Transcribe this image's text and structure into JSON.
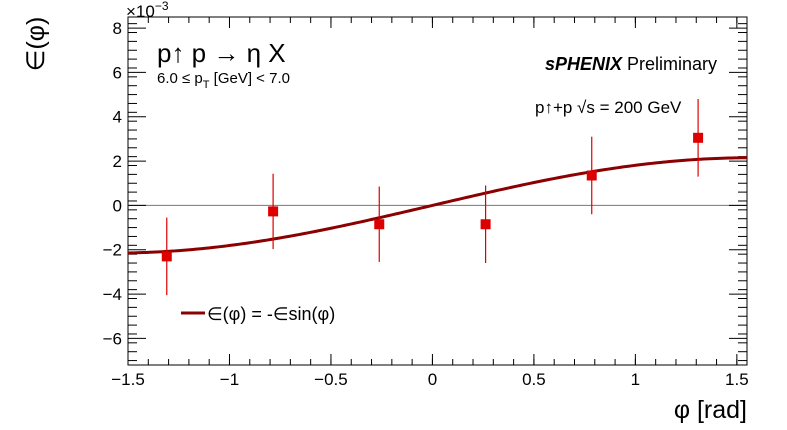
{
  "chart_data": {
    "type": "scatter",
    "ylabel": "∈(φ)",
    "xlabel": "φ [rad]",
    "y_exponent_label": "×10",
    "y_exponent_power": "−3",
    "xlim": [
      -1.5,
      1.55
    ],
    "ylim": [
      -7.2,
      8.5
    ],
    "x_ticks": [
      -1.5,
      -1,
      -0.5,
      0,
      0.5,
      1,
      1.5
    ],
    "x_tick_labels": [
      "−1.5",
      "−1",
      "−0.5",
      "0",
      "0.5",
      "1",
      "1.5"
    ],
    "y_ticks": [
      -6,
      -4,
      -2,
      0,
      2,
      4,
      6,
      8
    ],
    "y_tick_labels": [
      "−6",
      "−4",
      "−2",
      "0",
      "2",
      "4",
      "6",
      "8"
    ],
    "grid": false,
    "zero_line": true,
    "series": [
      {
        "kind": "points",
        "color": "#dd0000",
        "points": [
          {
            "x": -1.309,
            "y": -2.3,
            "err": 1.75
          },
          {
            "x": -0.785,
            "y": -0.27,
            "err": 1.7
          },
          {
            "x": -0.262,
            "y": -0.85,
            "err": 1.7
          },
          {
            "x": 0.262,
            "y": -0.85,
            "err": 1.75
          },
          {
            "x": 0.785,
            "y": 1.35,
            "err": 1.75
          },
          {
            "x": 1.309,
            "y": 3.05,
            "err": 1.75
          }
        ]
      },
      {
        "kind": "fit",
        "name": "∈(φ) = -∈sin(φ)",
        "color": "#8b0000",
        "amplitude": 2.15
      }
    ],
    "legend_placement": "bottom-left",
    "annotations": {
      "process": "p↑ p → η X",
      "pt_range": "6.0 ≤ p",
      "pt_sub": "T",
      "pt_range_suffix": " [GeV] < 7.0",
      "experiment": "sPHENIX",
      "status": " Preliminary",
      "collision": "p↑+p  √s = 200 GeV"
    }
  }
}
